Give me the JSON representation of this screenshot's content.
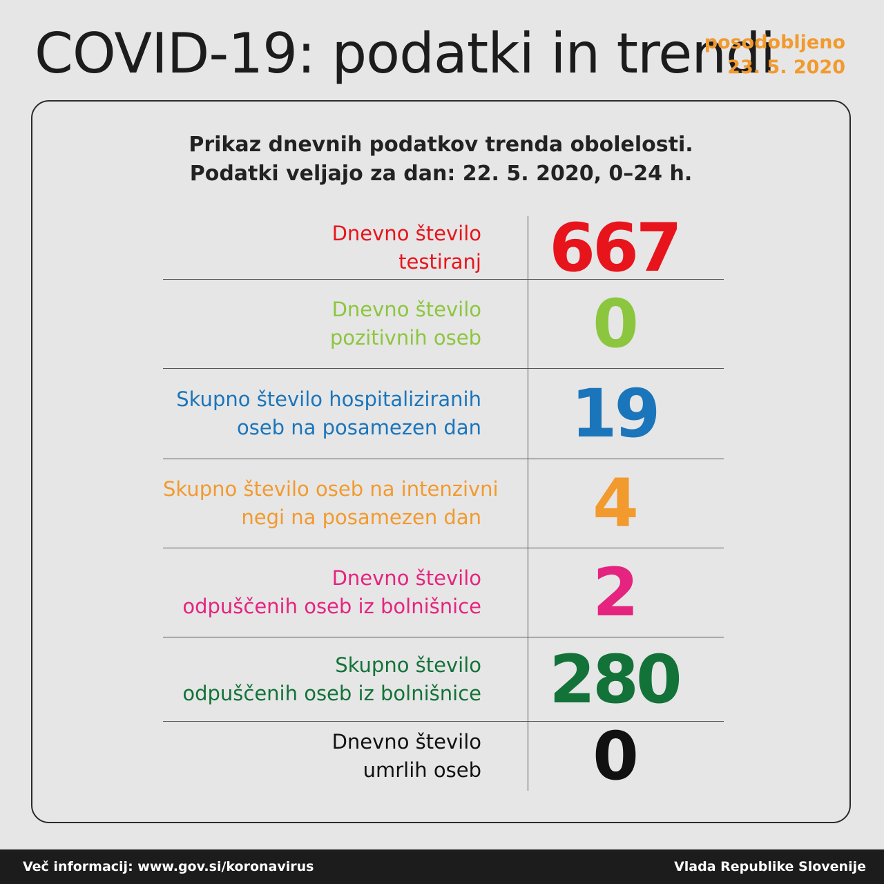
{
  "header": {
    "title": "COVID-19: podatki in trendi",
    "updated_label": "posodobljeno",
    "updated_date": "23. 5. 2020",
    "accent_color": "#f29a2e"
  },
  "card": {
    "subtitle_line1": "Prikaz dnevnih podatkov trenda obolelosti.",
    "subtitle_line2": "Podatki veljajo za dan: 22. 5. 2020, 0–24 h."
  },
  "stats": [
    {
      "label_line1": "Dnevno število",
      "label_line2": "testiranj",
      "value": "667",
      "color": "#e8141c"
    },
    {
      "label_line1": "Dnevno število",
      "label_line2": "pozitivnih oseb",
      "value": "0",
      "color": "#8cc63f"
    },
    {
      "label_line1": "Skupno število hospitaliziranih",
      "label_line2": "oseb na posamezen dan",
      "value": "19",
      "color": "#1b75bb"
    },
    {
      "label_line1": "Skupno število oseb na intenzivni",
      "label_line2": "negi na posamezen dan",
      "value": "4",
      "color": "#f29a2e"
    },
    {
      "label_line1": "Dnevno število",
      "label_line2": "odpuščenih oseb iz bolnišnice",
      "value": "2",
      "color": "#e5247f"
    },
    {
      "label_line1": "Skupno število",
      "label_line2": "odpuščenih oseb iz bolnišnice",
      "value": "280",
      "color": "#137238"
    },
    {
      "label_line1": "Dnevno število",
      "label_line2": "umrlih oseb",
      "value": "0",
      "color": "#111111"
    }
  ],
  "footer": {
    "info_text": "Več informacij: www.gov.si/koronavirus",
    "org_text": "Vlada Republike Slovenije"
  }
}
